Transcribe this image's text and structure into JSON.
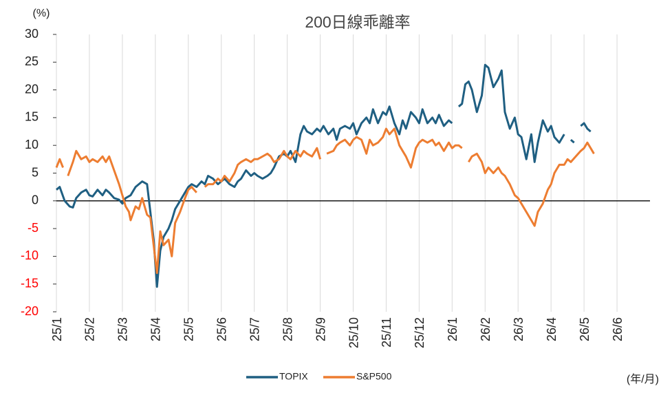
{
  "chart_data": {
    "type": "line",
    "title": "200日線乖離率",
    "y_unit": "(%)",
    "x_unit": "(年/月)",
    "xlim": [
      0,
      18
    ],
    "ylim": [
      -20,
      30
    ],
    "xticks": [
      {
        "value": 0,
        "label": "25/1"
      },
      {
        "value": 1,
        "label": "25/2"
      },
      {
        "value": 2,
        "label": "25/3"
      },
      {
        "value": 3,
        "label": "25/4"
      },
      {
        "value": 4,
        "label": "25/5"
      },
      {
        "value": 5,
        "label": "25/6"
      },
      {
        "value": 6,
        "label": "25/7"
      },
      {
        "value": 7,
        "label": "25/8"
      },
      {
        "value": 8,
        "label": "25/9"
      },
      {
        "value": 9,
        "label": "25/10"
      },
      {
        "value": 10,
        "label": "25/11"
      },
      {
        "value": 11,
        "label": "25/12"
      },
      {
        "value": 12,
        "label": "26/1"
      },
      {
        "value": 13,
        "label": "26/2"
      },
      {
        "value": 14,
        "label": "26/3"
      },
      {
        "value": 15,
        "label": "26/4"
      },
      {
        "value": 16,
        "label": "26/5"
      },
      {
        "value": 17,
        "label": "26/6"
      }
    ],
    "yticks": [
      -20,
      -15,
      -10,
      -5,
      0,
      5,
      10,
      15,
      20,
      25,
      30
    ],
    "negative_tick_color": "#ff0000",
    "grid": "x",
    "zero_line": true,
    "legend": "bottom",
    "series": [
      {
        "name": "TOPIX",
        "color": "#1f5f82",
        "x": [
          0,
          0.1,
          0.25,
          0.4,
          0.5,
          0.6,
          0.75,
          0.9,
          1.0,
          1.1,
          1.25,
          1.4,
          1.5,
          1.6,
          1.75,
          1.9,
          2.0,
          2.1,
          2.25,
          2.4,
          2.5,
          2.6,
          2.75,
          2.85,
          2.95,
          3.05,
          3.15,
          3.25,
          3.4,
          3.5,
          3.6,
          3.75,
          3.9,
          4.0,
          4.1,
          4.25,
          4.4,
          4.5,
          4.6,
          4.75,
          4.9,
          5.0,
          5.1,
          5.25,
          5.4,
          5.5,
          5.6,
          5.75,
          5.9,
          6.0,
          6.1,
          6.25,
          6.4,
          6.5,
          6.6,
          6.75,
          6.9,
          7.0,
          7.1,
          7.25,
          7.4,
          7.5,
          7.6,
          7.75,
          7.9,
          8.0,
          8.1,
          8.25,
          8.4,
          8.5,
          8.6,
          8.75,
          8.9,
          9.0,
          9.1,
          9.25,
          9.4,
          9.5,
          9.6,
          9.75,
          9.9,
          10.0,
          10.1,
          10.25,
          10.4,
          10.5,
          10.6,
          10.75,
          10.9,
          11.0,
          11.1,
          11.25,
          11.4,
          11.5,
          11.6,
          11.75,
          11.9,
          12.0,
          12.1,
          12.2,
          12.3,
          12.4,
          12.5,
          12.6,
          12.75,
          12.9,
          13.0,
          13.1,
          13.25,
          13.4,
          13.5,
          13.6,
          13.75,
          13.9,
          14.0,
          14.1,
          14.25,
          14.4,
          14.5,
          14.6,
          14.75,
          14.9,
          15.0,
          15.1,
          15.25,
          15.4,
          15.5,
          15.6,
          15.7,
          15.8,
          15.9,
          16.0,
          16.1,
          16.2
        ],
        "values": [
          2,
          2.5,
          0,
          -1,
          -1.2,
          0.5,
          1.5,
          2,
          1,
          0.8,
          2,
          1,
          2,
          1.5,
          0.5,
          0.2,
          -0.5,
          0.5,
          1,
          2.5,
          3,
          3.5,
          3,
          -2,
          -7,
          -15.5,
          -9,
          -6.5,
          -5,
          -3.5,
          -1.5,
          0,
          1.5,
          2.5,
          3,
          2.5,
          3.5,
          3,
          4.5,
          4,
          3,
          3.5,
          4,
          3,
          2.5,
          3.5,
          4,
          5.5,
          4.5,
          5,
          4.5,
          4,
          4.5,
          5,
          6,
          8,
          8.5,
          8,
          9,
          7,
          12,
          13.5,
          12.5,
          12,
          13,
          12.5,
          13.5,
          12,
          13,
          11,
          13,
          13.5,
          13,
          14,
          12,
          14,
          15,
          14,
          16.5,
          14,
          16,
          15.5,
          17,
          14,
          12,
          14.5,
          13,
          16,
          15,
          14,
          16.5,
          14,
          15,
          14,
          15.5,
          13.5,
          14.5,
          14,
          null,
          17,
          17.5,
          21,
          21.5,
          20,
          16,
          19,
          24.5,
          24,
          20.5,
          22,
          23.5,
          16,
          13,
          15,
          12,
          11.5,
          7.5,
          12,
          7,
          10.5,
          14.5,
          12.5,
          13.5,
          11.5,
          10.5,
          12,
          null,
          11,
          10.5,
          null,
          13.5,
          14,
          13,
          12.5
        ]
      },
      {
        "name": "S&P500",
        "color": "#ed7d31",
        "x": [
          0,
          0.1,
          0.2,
          0.3,
          0.35,
          0.5,
          0.6,
          0.75,
          0.9,
          1.0,
          1.1,
          1.25,
          1.4,
          1.5,
          1.6,
          1.75,
          1.9,
          2.0,
          2.1,
          2.2,
          2.25,
          2.4,
          2.5,
          2.6,
          2.75,
          2.85,
          2.95,
          3.05,
          3.15,
          3.25,
          3.4,
          3.5,
          3.6,
          3.75,
          3.9,
          4.0,
          4.1,
          4.25,
          4.3,
          4.5,
          4.6,
          4.75,
          4.9,
          5.0,
          5.1,
          5.25,
          5.4,
          5.5,
          5.6,
          5.75,
          5.9,
          6.0,
          6.1,
          6.25,
          6.4,
          6.5,
          6.6,
          6.75,
          6.9,
          7.0,
          7.1,
          7.25,
          7.4,
          7.5,
          7.6,
          7.75,
          7.9,
          8.0,
          8.1,
          8.2,
          8.4,
          8.5,
          8.6,
          8.75,
          8.9,
          9.0,
          9.1,
          9.25,
          9.4,
          9.5,
          9.6,
          9.75,
          9.9,
          10.0,
          10.1,
          10.25,
          10.4,
          10.5,
          10.6,
          10.75,
          10.9,
          11.0,
          11.1,
          11.25,
          11.4,
          11.5,
          11.6,
          11.75,
          11.9,
          12.0,
          12.1,
          12.2,
          12.3,
          12.4,
          12.5,
          12.6,
          12.75,
          12.9,
          13.0,
          13.1,
          13.25,
          13.4,
          13.5,
          13.6,
          13.75,
          13.9,
          14.0,
          14.1,
          14.25,
          14.4,
          14.5,
          14.6,
          14.75,
          14.9,
          15.0,
          15.1,
          15.25,
          15.4,
          15.5,
          15.6,
          15.75,
          15.9,
          16.0,
          16.1,
          16.2,
          16.3
        ],
        "values": [
          6,
          7.5,
          6,
          null,
          4.5,
          7,
          9,
          7.5,
          8,
          7,
          7.5,
          7,
          8,
          7,
          8,
          5.5,
          3,
          1,
          -1,
          -2,
          -3.5,
          -1,
          -1.5,
          0.5,
          -2.5,
          -3,
          -8,
          -13,
          -5.5,
          -8,
          -7,
          -10,
          -4,
          -2,
          0.5,
          2,
          2.5,
          1.5,
          null,
          2.5,
          3,
          3,
          4,
          3.5,
          4.5,
          3.5,
          5,
          6.5,
          7,
          7.5,
          7,
          7.5,
          7.5,
          8,
          8.5,
          8,
          7,
          7.5,
          9,
          8,
          7.5,
          9,
          8,
          9,
          8.5,
          8,
          9.5,
          7.5,
          null,
          8.5,
          9,
          10,
          10.5,
          11,
          10,
          11,
          11.5,
          11,
          8.5,
          11,
          10,
          10.5,
          11.5,
          13,
          12,
          13,
          10,
          9,
          8,
          6,
          9.5,
          10.5,
          11,
          10.5,
          11,
          10,
          10.5,
          9,
          10.5,
          9.5,
          10,
          10,
          9.5,
          null,
          7,
          8,
          8.5,
          7,
          5,
          6,
          5,
          6,
          5,
          4.5,
          3,
          1,
          0.5,
          -0.5,
          -2,
          -3.5,
          -4.5,
          -2,
          -0.5,
          2,
          3,
          5,
          6.5,
          6.5,
          7.5,
          7,
          8,
          9,
          9.5,
          10.5,
          9.5,
          8.5
        ]
      }
    ]
  }
}
